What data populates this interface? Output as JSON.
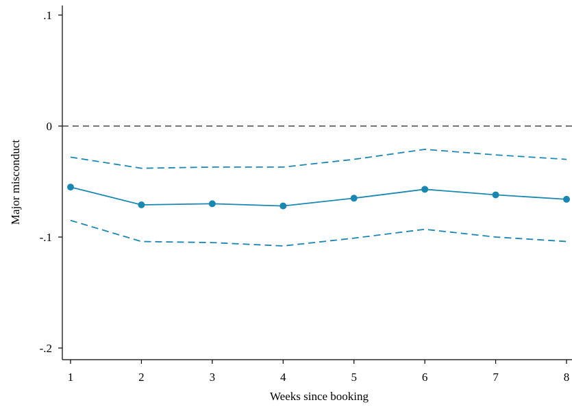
{
  "chart_data": {
    "type": "line",
    "title": "",
    "xlabel": "Weeks since booking",
    "ylabel": "Major misconduct",
    "x": [
      1,
      2,
      3,
      4,
      5,
      6,
      7,
      8
    ],
    "xticks": [
      "1",
      "2",
      "3",
      "4",
      "5",
      "6",
      "7",
      "8"
    ],
    "yticks": [
      {
        "value": 0.1,
        "label": ".1"
      },
      {
        "value": 0,
        "label": "0"
      },
      {
        "value": -0.1,
        "label": "-.1"
      },
      {
        "value": -0.2,
        "label": "-.2"
      }
    ],
    "ylim": [
      -0.205,
      0.1
    ],
    "xlim": [
      0.85,
      8.0
    ],
    "reference_line": 0,
    "series": [
      {
        "role": "estimate",
        "values": [
          -0.055,
          -0.071,
          -0.07,
          -0.072,
          -0.065,
          -0.057,
          -0.062,
          -0.066
        ]
      },
      {
        "role": "upper",
        "values": [
          -0.028,
          -0.038,
          -0.037,
          -0.037,
          -0.03,
          -0.021,
          -0.026,
          -0.03
        ]
      },
      {
        "role": "lower",
        "values": [
          -0.085,
          -0.104,
          -0.105,
          -0.108,
          -0.101,
          -0.093,
          -0.1,
          -0.104
        ]
      }
    ],
    "colors": {
      "series": "#1a87b3",
      "axis": "#000000",
      "reference": "#222222"
    },
    "grid": false,
    "legend": "none"
  }
}
